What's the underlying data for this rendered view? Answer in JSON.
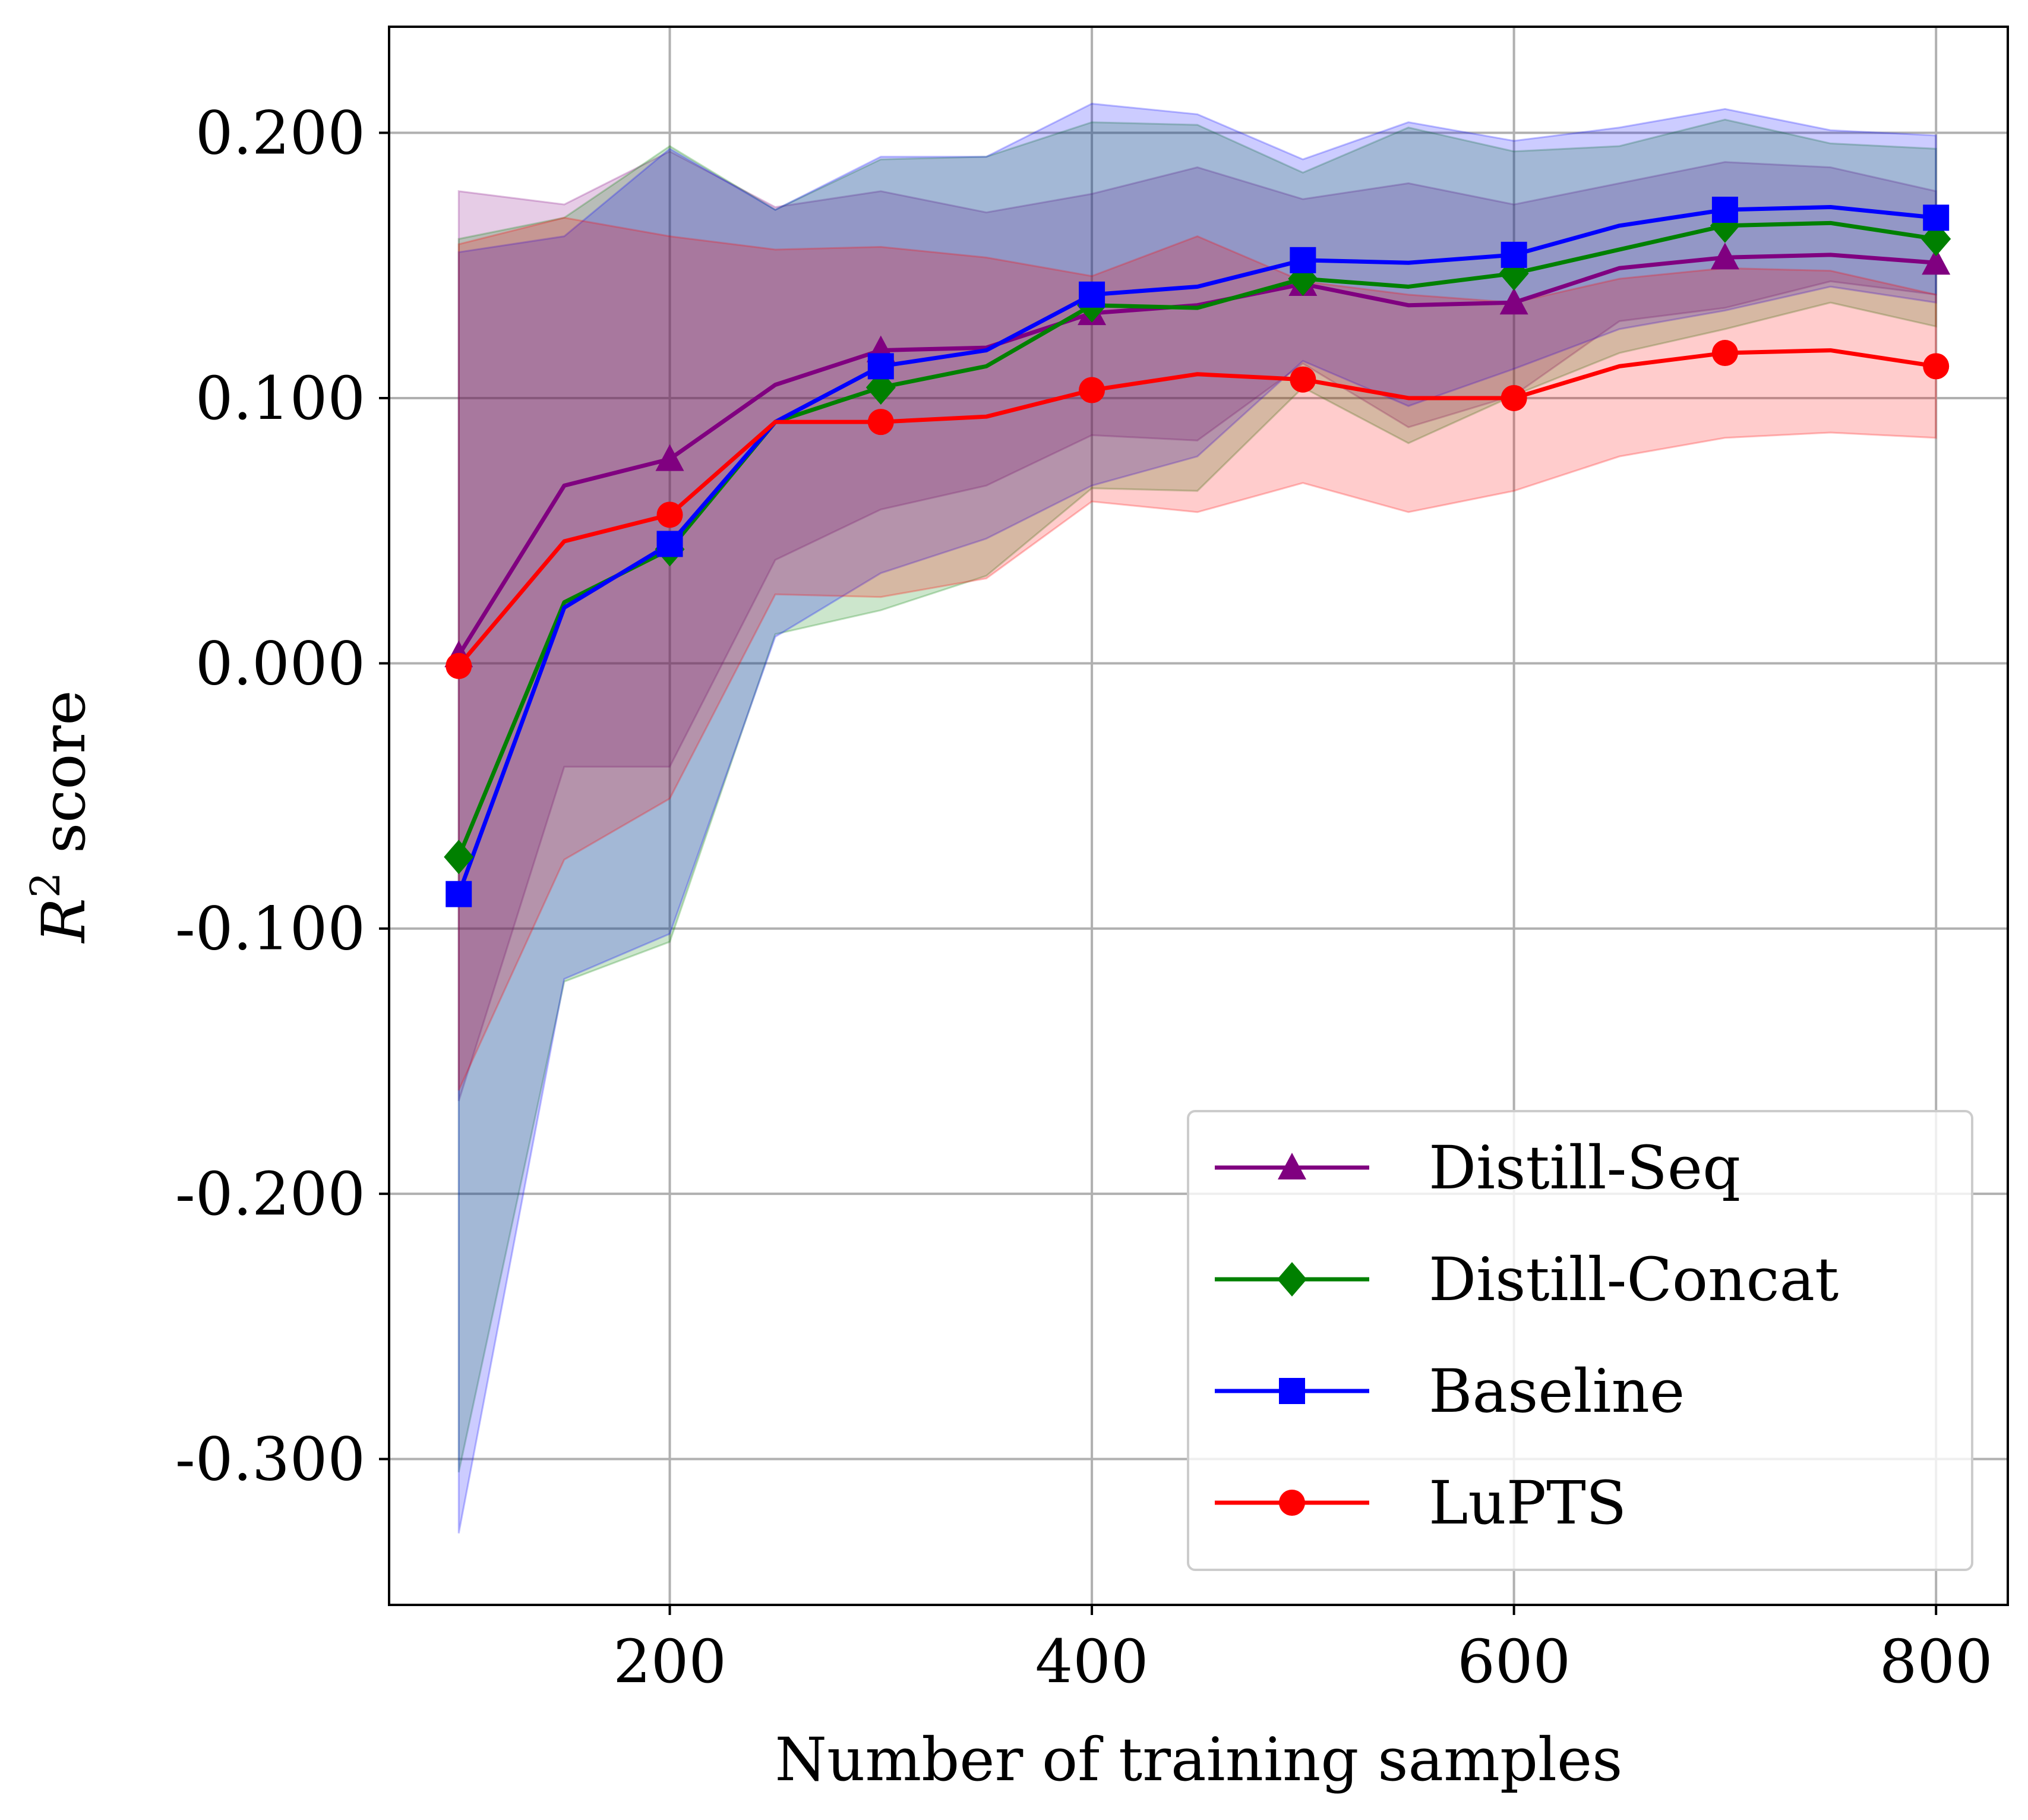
{
  "chart_data": {
    "type": "line",
    "xlabel": "Number of training samples",
    "ylabel": "R",
    "ylabel_superscript": "2",
    "ylabel_suffix": " score",
    "xlim": [
      67,
      834
    ],
    "ylim": [
      -0.355,
      0.24
    ],
    "xticks": [
      200,
      400,
      600,
      800
    ],
    "xtick_labels": [
      "200",
      "400",
      "600",
      "800"
    ],
    "yticks": [
      -0.3,
      -0.2,
      -0.1,
      0.0,
      0.1,
      0.2
    ],
    "ytick_labels": [
      "-0.300",
      "-0.200",
      "-0.100",
      "0.000",
      "0.100",
      "0.200"
    ],
    "grid": true,
    "legend_position": "bottom-right",
    "x": [
      100,
      150,
      200,
      250,
      300,
      350,
      400,
      450,
      500,
      550,
      600,
      650,
      700,
      750,
      800
    ],
    "series": [
      {
        "name": "Distill-Seq",
        "color": "#800080",
        "marker": "triangle",
        "values": [
          0.003,
          0.067,
          0.077,
          0.105,
          0.118,
          0.119,
          0.132,
          0.135,
          0.143,
          0.135,
          0.136,
          0.149,
          0.153,
          0.154,
          0.151
        ],
        "upper": [
          0.178,
          0.173,
          0.193,
          0.172,
          0.178,
          0.17,
          0.177,
          0.187,
          0.175,
          0.181,
          0.173,
          0.181,
          0.189,
          0.187,
          0.178
        ],
        "lower": [
          -0.165,
          -0.039,
          -0.039,
          0.039,
          0.058,
          0.067,
          0.086,
          0.084,
          0.113,
          0.089,
          0.101,
          0.129,
          0.134,
          0.144,
          0.139
        ]
      },
      {
        "name": "Distill-Concat",
        "color": "#008000",
        "marker": "diamond",
        "values": [
          -0.073,
          0.023,
          0.043,
          0.091,
          0.104,
          0.112,
          0.135,
          0.134,
          0.145,
          0.142,
          0.147,
          0.156,
          0.165,
          0.166,
          0.16
        ],
        "upper": [
          0.16,
          0.168,
          0.195,
          0.171,
          0.19,
          0.191,
          0.204,
          0.203,
          0.185,
          0.202,
          0.193,
          0.195,
          0.205,
          0.196,
          0.194
        ],
        "lower": [
          -0.305,
          -0.12,
          -0.105,
          0.011,
          0.02,
          0.033,
          0.066,
          0.065,
          0.104,
          0.083,
          0.101,
          0.117,
          0.126,
          0.136,
          0.127
        ]
      },
      {
        "name": "Baseline",
        "color": "#0000ff",
        "marker": "square",
        "values": [
          -0.087,
          0.021,
          0.045,
          0.091,
          0.112,
          0.118,
          0.139,
          0.142,
          0.152,
          0.151,
          0.154,
          0.165,
          0.171,
          0.172,
          0.168
        ],
        "upper": [
          0.155,
          0.161,
          0.194,
          0.171,
          0.191,
          0.191,
          0.211,
          0.207,
          0.19,
          0.204,
          0.197,
          0.202,
          0.209,
          0.201,
          0.199
        ],
        "lower": [
          -0.328,
          -0.119,
          -0.102,
          0.01,
          0.034,
          0.047,
          0.067,
          0.078,
          0.114,
          0.097,
          0.111,
          0.126,
          0.133,
          0.142,
          0.136
        ]
      },
      {
        "name": "LuPTS",
        "color": "#ff0000",
        "marker": "circle",
        "values": [
          -0.001,
          0.046,
          0.056,
          0.091,
          0.091,
          0.093,
          0.103,
          0.109,
          0.107,
          0.1,
          0.1,
          0.112,
          0.117,
          0.118,
          0.112
        ],
        "upper": [
          0.158,
          0.168,
          0.161,
          0.156,
          0.157,
          0.153,
          0.146,
          0.161,
          0.144,
          0.139,
          0.136,
          0.145,
          0.149,
          0.148,
          0.139
        ],
        "lower": [
          -0.161,
          -0.074,
          -0.051,
          0.026,
          0.025,
          0.032,
          0.061,
          0.057,
          0.068,
          0.057,
          0.065,
          0.078,
          0.085,
          0.087,
          0.085
        ]
      }
    ]
  }
}
